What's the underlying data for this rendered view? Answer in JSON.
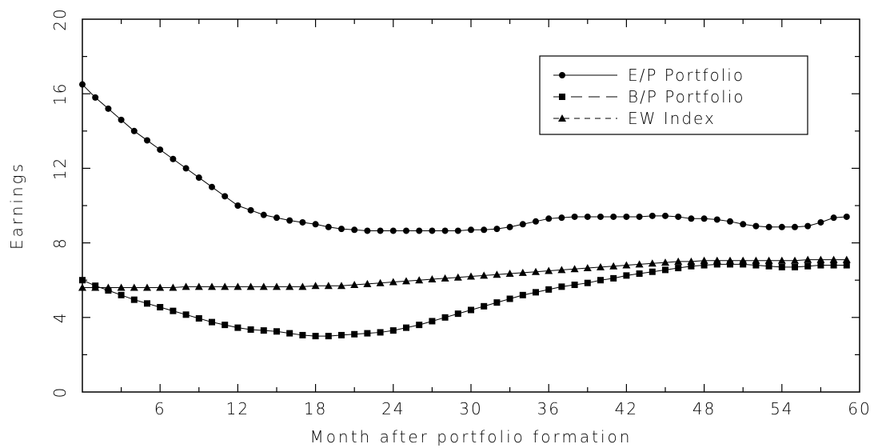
{
  "chart_data": {
    "type": "line",
    "title": "",
    "xlabel": "Month after portfolio formation",
    "ylabel": "Earnings",
    "xlim": [
      0,
      60
    ],
    "ylim": [
      0,
      20
    ],
    "xticks": [
      6,
      12,
      18,
      24,
      30,
      36,
      42,
      48,
      54,
      60
    ],
    "xtick_labels": [
      "6",
      "12",
      "18",
      "24",
      "30",
      "36",
      "42",
      "48",
      "54",
      "60"
    ],
    "yticks": [
      0,
      4,
      8,
      12,
      16,
      20
    ],
    "ytick_labels": [
      "0",
      "4",
      "8",
      "12",
      "16",
      "20"
    ],
    "grid": false,
    "legend_position": "top-right",
    "x": [
      0,
      1,
      2,
      3,
      4,
      5,
      6,
      7,
      8,
      9,
      10,
      11,
      12,
      13,
      14,
      15,
      16,
      17,
      18,
      19,
      20,
      21,
      22,
      23,
      24,
      25,
      26,
      27,
      28,
      29,
      30,
      31,
      32,
      33,
      34,
      35,
      36,
      37,
      38,
      39,
      40,
      41,
      42,
      43,
      44,
      45,
      46,
      47,
      48,
      49,
      50,
      51,
      52,
      53,
      54,
      55,
      56,
      57,
      58,
      59
    ],
    "series": [
      {
        "name": "E/P Portfolio",
        "marker": "circle",
        "line_style": "solid",
        "values": [
          16.5,
          15.8,
          15.2,
          14.6,
          14.0,
          13.5,
          13.0,
          12.5,
          12.0,
          11.5,
          11.0,
          10.5,
          10.0,
          9.75,
          9.5,
          9.35,
          9.2,
          9.1,
          9.0,
          8.85,
          8.75,
          8.7,
          8.65,
          8.65,
          8.65,
          8.65,
          8.65,
          8.65,
          8.65,
          8.65,
          8.7,
          8.7,
          8.75,
          8.85,
          9.0,
          9.15,
          9.3,
          9.35,
          9.4,
          9.4,
          9.4,
          9.4,
          9.4,
          9.4,
          9.45,
          9.45,
          9.4,
          9.3,
          9.3,
          9.25,
          9.15,
          9.0,
          8.9,
          8.85,
          8.85,
          8.85,
          8.9,
          9.1,
          9.35,
          9.4
        ]
      },
      {
        "name": "B/P Portfolio",
        "marker": "square",
        "line_style": "long-dash",
        "values": [
          6.0,
          5.7,
          5.45,
          5.2,
          4.95,
          4.75,
          4.55,
          4.35,
          4.15,
          3.95,
          3.75,
          3.6,
          3.45,
          3.35,
          3.3,
          3.25,
          3.15,
          3.05,
          3.0,
          3.0,
          3.05,
          3.1,
          3.15,
          3.2,
          3.3,
          3.45,
          3.6,
          3.8,
          4.0,
          4.2,
          4.4,
          4.6,
          4.8,
          5.0,
          5.2,
          5.35,
          5.5,
          5.65,
          5.75,
          5.85,
          6.0,
          6.1,
          6.25,
          6.35,
          6.45,
          6.55,
          6.65,
          6.75,
          6.8,
          6.85,
          6.85,
          6.85,
          6.8,
          6.75,
          6.7,
          6.7,
          6.75,
          6.8,
          6.8,
          6.8
        ]
      },
      {
        "name": "EW Index",
        "marker": "triangle",
        "line_style": "dashed",
        "values": [
          5.6,
          5.6,
          5.6,
          5.6,
          5.6,
          5.6,
          5.6,
          5.6,
          5.65,
          5.65,
          5.65,
          5.65,
          5.65,
          5.65,
          5.65,
          5.65,
          5.65,
          5.65,
          5.7,
          5.7,
          5.7,
          5.75,
          5.8,
          5.85,
          5.9,
          5.95,
          6.0,
          6.05,
          6.1,
          6.15,
          6.2,
          6.25,
          6.3,
          6.35,
          6.4,
          6.45,
          6.5,
          6.55,
          6.6,
          6.65,
          6.7,
          6.75,
          6.8,
          6.85,
          6.9,
          6.95,
          7.0,
          7.0,
          7.05,
          7.05,
          7.05,
          7.05,
          7.05,
          7.05,
          7.05,
          7.05,
          7.1,
          7.1,
          7.1,
          7.1
        ]
      }
    ]
  }
}
